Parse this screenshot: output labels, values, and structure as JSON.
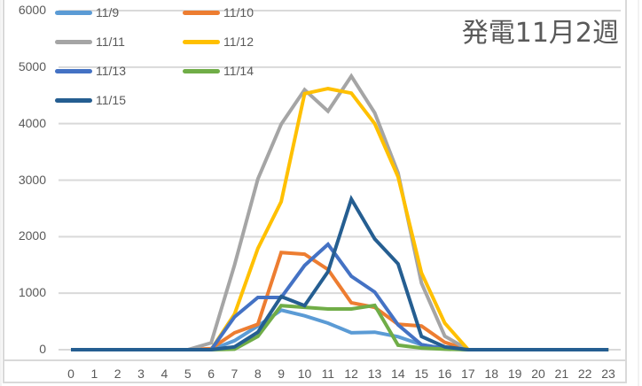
{
  "chart_data": {
    "type": "line",
    "title": "発電11月2週",
    "xlabel": "",
    "ylabel": "",
    "ylim": [
      0,
      6000
    ],
    "yticks": [
      0,
      1000,
      2000,
      3000,
      4000,
      5000,
      6000
    ],
    "grid": true,
    "legend_position": "top-left",
    "x": [
      0,
      1,
      2,
      3,
      4,
      5,
      6,
      7,
      8,
      9,
      10,
      11,
      12,
      13,
      14,
      15,
      16,
      17,
      18,
      19,
      20,
      21,
      22,
      23
    ],
    "series": [
      {
        "name": "11/9",
        "color": "#5B9BD5",
        "values": [
          0,
          0,
          0,
          0,
          0,
          0,
          0,
          160,
          420,
          700,
          600,
          470,
          300,
          310,
          230,
          90,
          20,
          0,
          0,
          0,
          0,
          0,
          0,
          0
        ]
      },
      {
        "name": "11/10",
        "color": "#ED7D31",
        "values": [
          0,
          0,
          0,
          0,
          0,
          0,
          20,
          300,
          450,
          1720,
          1690,
          1420,
          830,
          750,
          450,
          420,
          130,
          0,
          0,
          0,
          0,
          0,
          0,
          0
        ]
      },
      {
        "name": "11/11",
        "color": "#A5A5A5",
        "values": [
          0,
          0,
          0,
          0,
          0,
          0,
          120,
          1500,
          3020,
          3990,
          4600,
          4220,
          4840,
          4190,
          3130,
          1180,
          240,
          0,
          0,
          0,
          0,
          0,
          0,
          0
        ]
      },
      {
        "name": "11/12",
        "color": "#FFC000",
        "values": [
          0,
          0,
          0,
          0,
          0,
          0,
          0,
          630,
          1790,
          2620,
          4530,
          4620,
          4540,
          4000,
          3060,
          1360,
          470,
          0,
          0,
          0,
          0,
          0,
          0,
          0
        ]
      },
      {
        "name": "11/13",
        "color": "#4472C4",
        "values": [
          0,
          0,
          0,
          0,
          0,
          0,
          0,
          580,
          925,
          925,
          1490,
          1865,
          1300,
          1020,
          440,
          90,
          20,
          0,
          0,
          0,
          0,
          0,
          0,
          0
        ]
      },
      {
        "name": "11/14",
        "color": "#70AD47",
        "values": [
          0,
          0,
          0,
          0,
          0,
          0,
          0,
          10,
          235,
          780,
          750,
          720,
          720,
          785,
          80,
          30,
          10,
          0,
          0,
          0,
          0,
          0,
          0,
          0
        ]
      },
      {
        "name": "11/15",
        "color": "#255E91",
        "values": [
          0,
          0,
          0,
          0,
          0,
          0,
          0,
          50,
          310,
          940,
          780,
          1380,
          2665,
          1960,
          1520,
          235,
          50,
          0,
          0,
          0,
          0,
          0,
          0,
          0
        ]
      }
    ]
  },
  "chart": {
    "title": "発電11月2週",
    "yticks": [
      "0",
      "1000",
      "2000",
      "3000",
      "4000",
      "5000",
      "6000"
    ],
    "xticks": [
      "0",
      "1",
      "2",
      "3",
      "4",
      "5",
      "6",
      "7",
      "8",
      "9",
      "10",
      "11",
      "12",
      "13",
      "14",
      "15",
      "16",
      "17",
      "18",
      "19",
      "20",
      "21",
      "22",
      "23"
    ],
    "legend": [
      {
        "label": "11/9",
        "color": "#5B9BD5"
      },
      {
        "label": "11/10",
        "color": "#ED7D31"
      },
      {
        "label": "11/11",
        "color": "#A5A5A5"
      },
      {
        "label": "11/12",
        "color": "#FFC000"
      },
      {
        "label": "11/13",
        "color": "#4472C4"
      },
      {
        "label": "11/14",
        "color": "#70AD47"
      },
      {
        "label": "11/15",
        "color": "#255E91"
      }
    ],
    "colors": {
      "gridline": "#D9D9D9",
      "axis_text": "#595959",
      "frame": "#D9D9D9"
    }
  }
}
